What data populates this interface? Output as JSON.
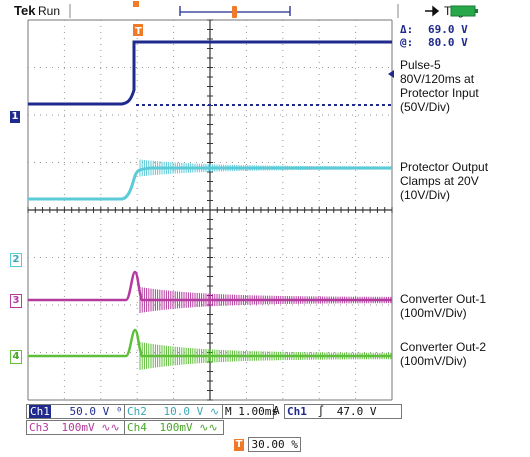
{
  "status": {
    "brand": "Tek",
    "run": "Run",
    "trig": "Trig'd",
    "trigger_pos_marker": "T"
  },
  "cursors": {
    "delta": "Δ:",
    "delta_value": "69.0 V",
    "at": "@:",
    "at_value": "80.0 V"
  },
  "annotations": {
    "ch1": [
      "Pulse-5",
      "80V/120ms at",
      "Protector Input",
      "(50V/Div)"
    ],
    "ch2": [
      "Protector Output",
      "Clamps at 20V",
      "(10V/Div)"
    ],
    "ch3": [
      "Converter Out-1",
      "(100mV/Div)"
    ],
    "ch4": [
      "Converter Out-2",
      "(100mV/Div)"
    ]
  },
  "channel_markers": [
    "1",
    "2",
    "3",
    "4"
  ],
  "readouts": {
    "ch1_name": "Ch1",
    "ch1_scale": "50.0 V",
    "ch2_name": "Ch2",
    "ch2_scale": "10.0 V",
    "ch3_name": "Ch3",
    "ch3_scale": "100mV",
    "ch4_name": "Ch4",
    "ch4_scale": "100mV",
    "timebase": "M 1.00ms",
    "trigger_mode": "A",
    "trigger_source": "Ch1",
    "trigger_slope": "∫",
    "trigger_level": "47.0 V",
    "trigger_percent": "30.00 %",
    "trigger_percent_marker": "T"
  },
  "colors": {
    "ch1": "#1f2a8c",
    "ch2": "#5ccbd8",
    "ch3": "#b43a9e",
    "ch4": "#5fbe3a",
    "trigger": "#f07a28",
    "battery": "#27a84a"
  },
  "icons": [
    "usb-plug-icon",
    "battery-icon"
  ]
}
